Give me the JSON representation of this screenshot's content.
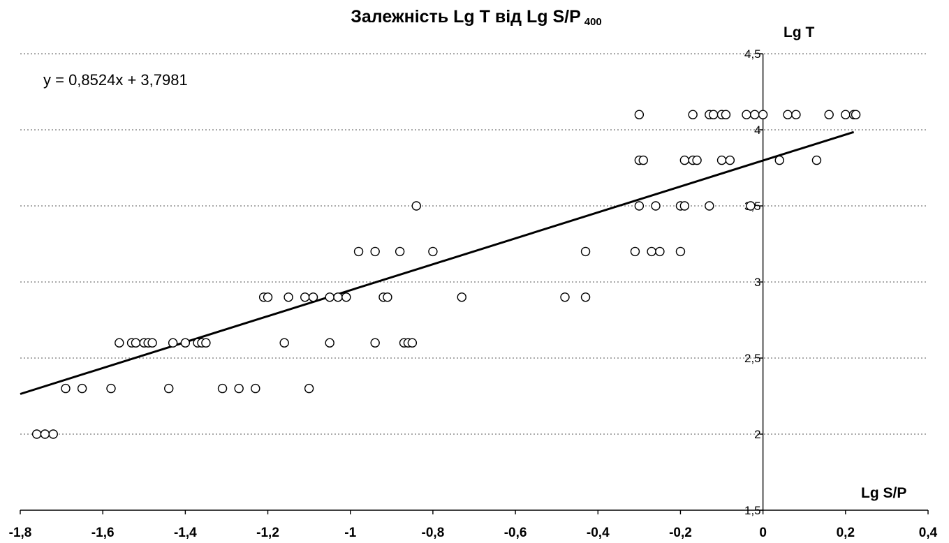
{
  "chart_data": {
    "type": "scatter",
    "title": "Залежність Lg T від Lg S/P",
    "title_subscript": "400",
    "xlabel": "Lg S/P",
    "ylabel": "Lg T",
    "xlim": [
      -1.8,
      0.4
    ],
    "ylim": [
      1.5,
      4.5
    ],
    "x_ticks": [
      -1.8,
      -1.6,
      -1.4,
      -1.2,
      -1.0,
      -0.8,
      -0.6,
      -0.4,
      -0.2,
      0,
      0.2,
      0.4
    ],
    "x_tick_labels": [
      "-1,8",
      "-1,6",
      "-1,4",
      "-1,2",
      "-1",
      "-0,8",
      "-0,6",
      "-0,4",
      "-0,2",
      "0",
      "0,2",
      "0,4"
    ],
    "y_ticks": [
      1.5,
      2,
      2.5,
      3,
      3.5,
      4,
      4.5
    ],
    "y_tick_labels": [
      "1,5",
      "2",
      "2,5",
      "3",
      "3,5",
      "4",
      "4,5"
    ],
    "grid": "horizontal dotted",
    "trendline": {
      "slope": 0.8524,
      "intercept": 3.7981,
      "x_range": [
        -1.8,
        0.22
      ],
      "equation_label": "y = 0,8524x + 3,7981"
    },
    "points": [
      [
        -1.76,
        2.0
      ],
      [
        -1.74,
        2.0
      ],
      [
        -1.72,
        2.0
      ],
      [
        -1.69,
        2.3
      ],
      [
        -1.65,
        2.3
      ],
      [
        -1.58,
        2.3
      ],
      [
        -1.44,
        2.3
      ],
      [
        -1.31,
        2.3
      ],
      [
        -1.27,
        2.3
      ],
      [
        -1.23,
        2.3
      ],
      [
        -1.1,
        2.3
      ],
      [
        -1.56,
        2.6
      ],
      [
        -1.53,
        2.6
      ],
      [
        -1.52,
        2.6
      ],
      [
        -1.5,
        2.6
      ],
      [
        -1.49,
        2.6
      ],
      [
        -1.48,
        2.6
      ],
      [
        -1.43,
        2.6
      ],
      [
        -1.4,
        2.6
      ],
      [
        -1.37,
        2.6
      ],
      [
        -1.36,
        2.6
      ],
      [
        -1.35,
        2.6
      ],
      [
        -1.16,
        2.6
      ],
      [
        -1.05,
        2.6
      ],
      [
        -0.94,
        2.6
      ],
      [
        -0.87,
        2.6
      ],
      [
        -0.86,
        2.6
      ],
      [
        -0.85,
        2.6
      ],
      [
        -1.21,
        2.9
      ],
      [
        -1.2,
        2.9
      ],
      [
        -1.15,
        2.9
      ],
      [
        -1.11,
        2.9
      ],
      [
        -1.09,
        2.9
      ],
      [
        -1.05,
        2.9
      ],
      [
        -1.03,
        2.9
      ],
      [
        -1.01,
        2.9
      ],
      [
        -0.92,
        2.9
      ],
      [
        -0.91,
        2.9
      ],
      [
        -0.73,
        2.9
      ],
      [
        -0.48,
        2.9
      ],
      [
        -0.43,
        2.9
      ],
      [
        -0.98,
        3.2
      ],
      [
        -0.94,
        3.2
      ],
      [
        -0.88,
        3.2
      ],
      [
        -0.8,
        3.2
      ],
      [
        -0.43,
        3.2
      ],
      [
        -0.31,
        3.2
      ],
      [
        -0.27,
        3.2
      ],
      [
        -0.25,
        3.2
      ],
      [
        -0.2,
        3.2
      ],
      [
        -0.84,
        3.5
      ],
      [
        -0.3,
        3.5
      ],
      [
        -0.26,
        3.5
      ],
      [
        -0.2,
        3.5
      ],
      [
        -0.19,
        3.5
      ],
      [
        -0.13,
        3.5
      ],
      [
        -0.03,
        3.5
      ],
      [
        -0.3,
        3.8
      ],
      [
        -0.29,
        3.8
      ],
      [
        -0.19,
        3.8
      ],
      [
        -0.17,
        3.8
      ],
      [
        -0.16,
        3.8
      ],
      [
        -0.1,
        3.8
      ],
      [
        -0.08,
        3.8
      ],
      [
        0.04,
        3.8
      ],
      [
        0.13,
        3.8
      ],
      [
        -0.3,
        4.1
      ],
      [
        -0.17,
        4.1
      ],
      [
        -0.13,
        4.1
      ],
      [
        -0.12,
        4.1
      ],
      [
        -0.1,
        4.1
      ],
      [
        -0.09,
        4.1
      ],
      [
        -0.04,
        4.1
      ],
      [
        -0.02,
        4.1
      ],
      [
        0.0,
        4.1
      ],
      [
        0.06,
        4.1
      ],
      [
        0.08,
        4.1
      ],
      [
        0.16,
        4.1
      ],
      [
        0.2,
        4.1
      ],
      [
        0.22,
        4.1
      ],
      [
        0.225,
        4.1
      ]
    ]
  }
}
